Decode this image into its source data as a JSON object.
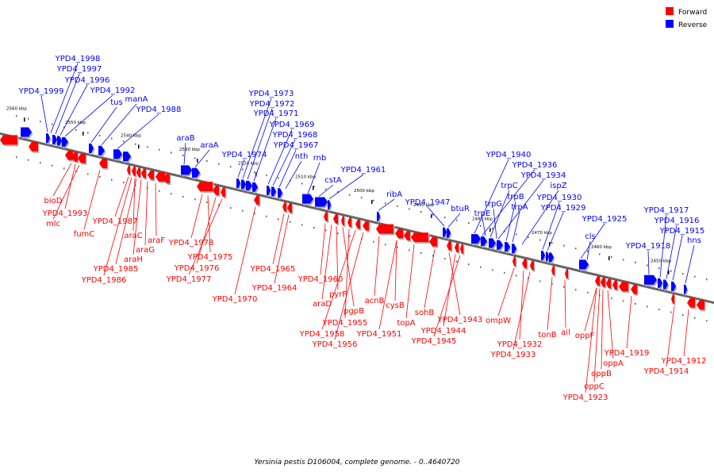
{
  "colors": {
    "forward": "#ff0000",
    "reverse": "#0000ff",
    "axis": "#666666"
  },
  "legend": [
    {
      "key": "forward",
      "label": "Forward"
    },
    {
      "key": "reverse",
      "label": "Reverse"
    }
  ],
  "caption": "Yersinia pestis D106004, complete genome. - 0..4640720",
  "ticks": [
    {
      "kbp": 2560,
      "label": "2560 kbp"
    },
    {
      "kbp": 2550,
      "label": "2550 kbp"
    },
    {
      "kbp": 2540,
      "label": "2540 kbp"
    },
    {
      "kbp": 2530,
      "label": "2530 kbp"
    },
    {
      "kbp": 2520,
      "label": "2520 kbp"
    },
    {
      "kbp": 2510,
      "label": "2510 kbp"
    },
    {
      "kbp": 2500,
      "label": "2500 kbp"
    },
    {
      "kbp": 2490,
      "label": "2490 kbp"
    },
    {
      "kbp": 2480,
      "label": "2480 kbp"
    },
    {
      "kbp": 2470,
      "label": "2470 kbp"
    },
    {
      "kbp": 2460,
      "label": "2460 kbp"
    },
    {
      "kbp": 2450,
      "label": "2450 kbp"
    }
  ],
  "genes_reverse": [
    "YPD4_1999",
    "YPD4_1998",
    "YPD4_1997",
    "YPD4_1996",
    "YPD4_1992",
    "tus",
    "manA",
    "YPD4_1988",
    "araB",
    "araA",
    "YPD4_1974",
    "YPD4_1973",
    "YPD4_1972",
    "YPD4_1971",
    "YPD4_1969",
    "YPD4_1968",
    "YPD4_1967",
    "nth",
    "rnb",
    "cstA",
    "YPD4_1961",
    "ribA",
    "YPD4_1947",
    "btuR",
    "YPD4_1940",
    "YPD4_1936",
    "trpC",
    "YPD4_1934",
    "trpG",
    "trpB",
    "trpE",
    "ispZ",
    "trpA",
    "YPD4_1930",
    "YPD4_1929",
    "YPD4_1925",
    "cls",
    "YPD4_1917",
    "YPD4_1916",
    "YPD4_1915",
    "YPD4_1918",
    "hns"
  ],
  "genes_forward": [
    "bioD",
    "YPD4_1993",
    "mlc",
    "fumC",
    "YPD4_1987",
    "araC",
    "araF",
    "araG",
    "araH",
    "YPD4_1985",
    "YPD4_1986",
    "YPD4_1978",
    "YPD4_1975",
    "YPD4_1976",
    "YPD4_1977",
    "YPD4_1970",
    "YPD4_1965",
    "YPD4_1964",
    "YPD4_1960",
    "pyrF",
    "araD",
    "pgpB",
    "YPD4_1955",
    "acnB",
    "cysB",
    "YPD4_1958",
    "YPD4_1956",
    "YPD4_1951",
    "topA",
    "sohB",
    "YPD4_1943",
    "YPD4_1944",
    "YPD4_1945",
    "ompW",
    "YPD4_1932",
    "YPD4_1933",
    "tonB",
    "ail",
    "oppF",
    "YPD4_1919",
    "oppA",
    "oppB",
    "oppC",
    "YPD4_1923",
    "YPD4_1912",
    "YPD4_1914"
  ]
}
